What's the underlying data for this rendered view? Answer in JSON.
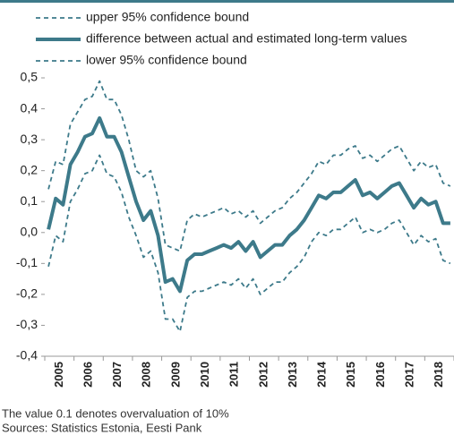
{
  "chart_data": {
    "type": "line",
    "categories": [
      null,
      "2005",
      null,
      null,
      null,
      "2006",
      null,
      null,
      null,
      "2007",
      null,
      null,
      null,
      "2008",
      null,
      null,
      null,
      "2009",
      null,
      null,
      null,
      "2010",
      null,
      null,
      null,
      "2011",
      null,
      null,
      null,
      "2012",
      null,
      null,
      null,
      "2013",
      null,
      null,
      null,
      "2014",
      null,
      null,
      null,
      "2015",
      null,
      null,
      null,
      "2016",
      null,
      null,
      null,
      "2017",
      null,
      null,
      null,
      "2018",
      null,
      null
    ],
    "series": [
      {
        "name": "upper 95% confidence bound",
        "color": "#3d7a8a",
        "style": "dashed",
        "values": [
          0.14,
          0.23,
          0.22,
          0.35,
          0.39,
          0.43,
          0.44,
          0.49,
          0.43,
          0.43,
          0.38,
          0.3,
          0.2,
          0.18,
          0.2,
          0.11,
          -0.04,
          -0.05,
          -0.06,
          0.04,
          0.06,
          0.05,
          0.06,
          0.07,
          0.08,
          0.06,
          0.07,
          0.05,
          0.07,
          0.03,
          0.05,
          0.07,
          0.08,
          0.11,
          0.13,
          0.16,
          0.19,
          0.23,
          0.22,
          0.25,
          0.25,
          0.27,
          0.28,
          0.24,
          0.25,
          0.23,
          0.25,
          0.27,
          0.28,
          0.24,
          0.2,
          0.23,
          0.21,
          0.22,
          0.16,
          0.15
        ]
      },
      {
        "name": "difference between actual and estimated long-term values",
        "color": "#3d7a8a",
        "style": "solid",
        "values": [
          0.01,
          0.11,
          0.09,
          0.22,
          0.26,
          0.31,
          0.32,
          0.37,
          0.31,
          0.31,
          0.26,
          0.18,
          0.1,
          0.04,
          0.07,
          -0.01,
          -0.16,
          -0.15,
          -0.19,
          -0.09,
          -0.07,
          -0.07,
          -0.06,
          -0.05,
          -0.04,
          -0.05,
          -0.03,
          -0.06,
          -0.03,
          -0.08,
          -0.06,
          -0.04,
          -0.04,
          -0.01,
          0.01,
          0.04,
          0.08,
          0.12,
          0.11,
          0.13,
          0.13,
          0.15,
          0.17,
          0.12,
          0.13,
          0.11,
          0.13,
          0.15,
          0.16,
          0.12,
          0.08,
          0.11,
          0.09,
          0.1,
          0.03,
          0.03
        ]
      },
      {
        "name": "lower 95% confidence bound",
        "color": "#3d7a8a",
        "style": "dashed",
        "values": [
          -0.11,
          -0.01,
          -0.03,
          0.1,
          0.14,
          0.19,
          0.2,
          0.25,
          0.19,
          0.18,
          0.13,
          0.05,
          -0.01,
          -0.08,
          -0.06,
          -0.13,
          -0.28,
          -0.28,
          -0.32,
          -0.21,
          -0.19,
          -0.19,
          -0.18,
          -0.17,
          -0.16,
          -0.17,
          -0.15,
          -0.18,
          -0.15,
          -0.2,
          -0.18,
          -0.16,
          -0.16,
          -0.13,
          -0.11,
          -0.08,
          -0.03,
          0.0,
          -0.01,
          0.01,
          0.01,
          0.03,
          0.05,
          0.0,
          0.01,
          0.0,
          0.01,
          0.03,
          0.04,
          0.0,
          -0.04,
          -0.01,
          -0.03,
          -0.02,
          -0.09,
          -0.1
        ]
      }
    ],
    "ylim": [
      -0.4,
      0.5
    ],
    "yticks": [
      {
        "value": 0.5,
        "label": "0,5"
      },
      {
        "value": 0.4,
        "label": "0,4"
      },
      {
        "value": 0.3,
        "label": "0,3"
      },
      {
        "value": 0.2,
        "label": "0,2"
      },
      {
        "value": 0.1,
        "label": "0,1"
      },
      {
        "value": 0,
        "label": "0,0"
      },
      {
        "value": -0.1,
        "label": "-0,1"
      },
      {
        "value": -0.2,
        "label": "-0,2"
      },
      {
        "value": -0.3,
        "label": "-0,3"
      },
      {
        "value": -0.4,
        "label": "-0,4"
      }
    ],
    "grid": false,
    "legend": "top",
    "notes": [
      "The value 0.1 denotes overvaluation of 10%",
      "Sources: Statistics Estonia, Eesti Pank"
    ]
  }
}
